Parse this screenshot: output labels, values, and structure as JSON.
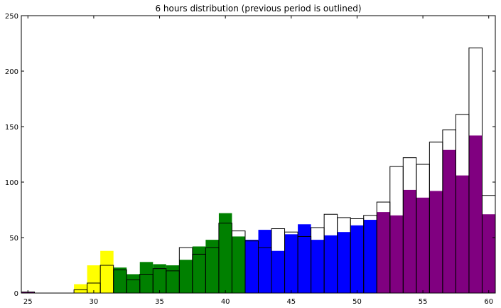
{
  "chart_data": {
    "type": "bar",
    "title": "6 hours distribution (previous period is outlined)",
    "xlabel": "",
    "ylabel": "",
    "xlim": [
      24.5,
      60.5
    ],
    "ylim": [
      0,
      250
    ],
    "x_ticks": [
      25,
      30,
      35,
      40,
      45,
      50,
      55,
      60
    ],
    "y_ticks": [
      0,
      50,
      100,
      150,
      200,
      250
    ],
    "bin_width": 1,
    "grid": false,
    "legend": "none",
    "colors": {
      "yellow": "#ffff00",
      "green": "#008000",
      "blue": "#0000ff",
      "purple": "#800080",
      "outline": "#000000"
    },
    "series": [
      {
        "style": "filled",
        "x": [
          25,
          28,
          29,
          30,
          31,
          32,
          33,
          34,
          35,
          36,
          37,
          38,
          39,
          40,
          41,
          42,
          43,
          44,
          45,
          46,
          47,
          48,
          49,
          50,
          51,
          52,
          53,
          54,
          55,
          56,
          57,
          58,
          59,
          60
        ],
        "values": [
          1,
          0,
          8,
          25,
          38,
          23,
          17,
          28,
          26,
          25,
          30,
          42,
          48,
          72,
          51,
          48,
          57,
          38,
          53,
          62,
          48,
          52,
          55,
          61,
          66,
          73,
          70,
          93,
          86,
          92,
          129,
          106,
          142,
          71
        ],
        "colors": [
          "purple",
          "yellow",
          "yellow",
          "yellow",
          "yellow",
          "green",
          "green",
          "green",
          "green",
          "green",
          "green",
          "green",
          "green",
          "green",
          "green",
          "blue",
          "blue",
          "blue",
          "blue",
          "blue",
          "blue",
          "blue",
          "blue",
          "blue",
          "blue",
          "purple",
          "purple",
          "purple",
          "purple",
          "purple",
          "purple",
          "purple",
          "purple",
          "purple"
        ]
      },
      {
        "style": "outlined",
        "x": [
          25,
          28,
          29,
          30,
          31,
          32,
          33,
          34,
          35,
          36,
          37,
          38,
          39,
          40,
          41,
          42,
          43,
          44,
          45,
          46,
          47,
          48,
          49,
          50,
          51,
          52,
          53,
          54,
          55,
          56,
          57,
          58,
          59,
          60
        ],
        "values": [
          1,
          0,
          3,
          9,
          25,
          21,
          12,
          17,
          22,
          20,
          41,
          35,
          41,
          63,
          56,
          47,
          41,
          58,
          55,
          51,
          59,
          71,
          68,
          67,
          70,
          82,
          114,
          122,
          116,
          136,
          147,
          161,
          221,
          88
        ]
      }
    ]
  }
}
